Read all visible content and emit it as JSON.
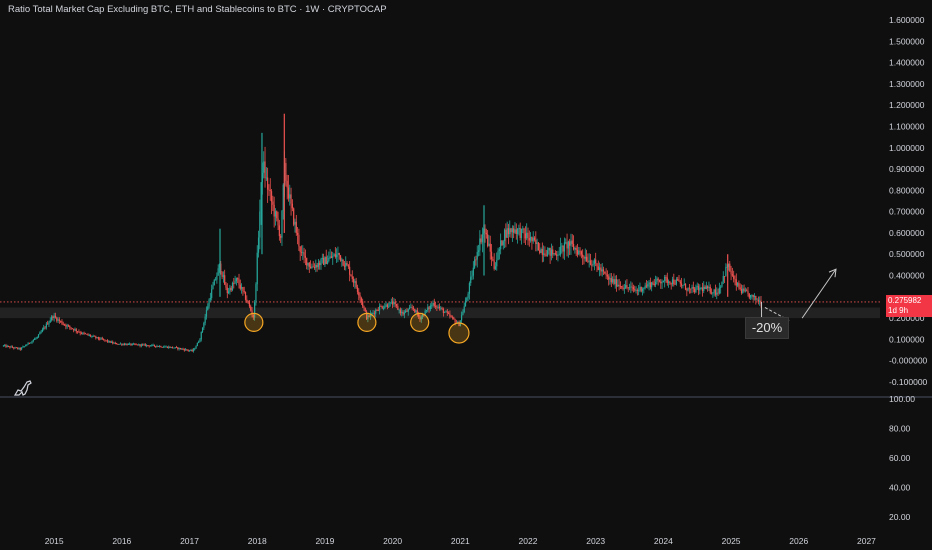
{
  "header": {
    "title": "Ratio Total Market Cap Excluding BTC, ETH and Stablecoins to BTC · 1W · CRYPTOCAP"
  },
  "price_badge": {
    "value": "0.275982",
    "countdown": "1d 9h",
    "color": "#f23645"
  },
  "annotation": {
    "label": "-20%"
  },
  "colors": {
    "up": "#26a69a",
    "down": "#ef5350",
    "background": "#0f0f0f",
    "zone": "#2a2a2a",
    "highlight": "#f5a623"
  },
  "icons": {
    "logo": "dinosaur-icon"
  },
  "chart_data": [
    {
      "type": "candlestick",
      "title": "Ratio Total Market Cap Excluding BTC, ETH and Stablecoins to BTC · 1W · CRYPTOCAP",
      "y_ticks": [
        "1.600000",
        "1.500000",
        "1.400000",
        "1.300000",
        "1.200000",
        "1.100000",
        "1.000000",
        "0.900000",
        "0.800000",
        "0.700000",
        "0.600000",
        "0.500000",
        "0.400000",
        "0.200000",
        "0.100000",
        "-0.000000",
        "-0.100000"
      ],
      "ylim": [
        -0.1,
        1.6
      ],
      "x_ticks": [
        "2015",
        "2016",
        "2017",
        "2018",
        "2019",
        "2020",
        "2021",
        "2022",
        "2023",
        "2024",
        "2025",
        "2026",
        "2027"
      ],
      "xlim": [
        2014.2,
        2027.2
      ],
      "last_value": 0.275982,
      "zone": [
        0.2,
        0.25
      ],
      "marked_lows": [
        {
          "x": 2017.95,
          "y": 0.18
        },
        {
          "x": 2019.62,
          "y": 0.18
        },
        {
          "x": 2020.4,
          "y": 0.18
        },
        {
          "x": 2020.98,
          "y": 0.13
        }
      ],
      "projection": {
        "path": [
          [
            2025.5,
            0.25
          ],
          [
            2025.85,
            0.19
          ]
        ],
        "rebound": [
          [
            2026.05,
            0.2
          ],
          [
            2026.55,
            0.43
          ]
        ]
      },
      "price_path": [
        [
          2014.25,
          0.07
        ],
        [
          2014.5,
          0.055
        ],
        [
          2014.75,
          0.11
        ],
        [
          2014.98,
          0.21
        ],
        [
          2015.15,
          0.17
        ],
        [
          2015.4,
          0.13
        ],
        [
          2015.6,
          0.11
        ],
        [
          2015.9,
          0.08
        ],
        [
          2016.2,
          0.075
        ],
        [
          2016.5,
          0.07
        ],
        [
          2016.8,
          0.06
        ],
        [
          2017.05,
          0.045
        ],
        [
          2017.15,
          0.1
        ],
        [
          2017.3,
          0.3
        ],
        [
          2017.45,
          0.45
        ],
        [
          2017.55,
          0.32
        ],
        [
          2017.7,
          0.38
        ],
        [
          2017.85,
          0.28
        ],
        [
          2017.95,
          0.2
        ],
        [
          2018.02,
          0.6
        ],
        [
          2018.08,
          0.93
        ],
        [
          2018.15,
          0.82
        ],
        [
          2018.25,
          0.7
        ],
        [
          2018.35,
          0.58
        ],
        [
          2018.4,
          0.9
        ],
        [
          2018.5,
          0.72
        ],
        [
          2018.65,
          0.5
        ],
        [
          2018.8,
          0.44
        ],
        [
          2019.0,
          0.47
        ],
        [
          2019.2,
          0.5
        ],
        [
          2019.35,
          0.43
        ],
        [
          2019.5,
          0.32
        ],
        [
          2019.62,
          0.2
        ],
        [
          2019.8,
          0.25
        ],
        [
          2020.0,
          0.27
        ],
        [
          2020.15,
          0.22
        ],
        [
          2020.3,
          0.25
        ],
        [
          2020.4,
          0.2
        ],
        [
          2020.6,
          0.27
        ],
        [
          2020.8,
          0.22
        ],
        [
          2020.98,
          0.17
        ],
        [
          2021.1,
          0.3
        ],
        [
          2021.25,
          0.52
        ],
        [
          2021.35,
          0.62
        ],
        [
          2021.5,
          0.44
        ],
        [
          2021.65,
          0.6
        ],
        [
          2021.8,
          0.62
        ],
        [
          2022.0,
          0.58
        ],
        [
          2022.2,
          0.52
        ],
        [
          2022.4,
          0.5
        ],
        [
          2022.6,
          0.55
        ],
        [
          2022.8,
          0.5
        ],
        [
          2023.0,
          0.45
        ],
        [
          2023.2,
          0.38
        ],
        [
          2023.4,
          0.35
        ],
        [
          2023.6,
          0.33
        ],
        [
          2023.8,
          0.36
        ],
        [
          2024.0,
          0.38
        ],
        [
          2024.2,
          0.37
        ],
        [
          2024.4,
          0.33
        ],
        [
          2024.6,
          0.34
        ],
        [
          2024.8,
          0.32
        ],
        [
          2024.95,
          0.45
        ],
        [
          2025.05,
          0.37
        ],
        [
          2025.15,
          0.33
        ],
        [
          2025.3,
          0.3
        ],
        [
          2025.45,
          0.276
        ]
      ],
      "spikes": [
        {
          "x": 2018.07,
          "high": 1.07,
          "low": 0.5
        },
        {
          "x": 2018.4,
          "high": 1.16,
          "low": 0.6
        },
        {
          "x": 2021.35,
          "high": 0.73,
          "low": 0.4
        },
        {
          "x": 2024.95,
          "high": 0.5,
          "low": 0.3
        },
        {
          "x": 2017.45,
          "high": 0.62,
          "low": 0.3
        }
      ]
    },
    {
      "type": "line",
      "y_ticks": [
        "100.00",
        "80.00",
        "60.00",
        "40.00",
        "20.00"
      ],
      "ylim": [
        10,
        100
      ]
    }
  ]
}
